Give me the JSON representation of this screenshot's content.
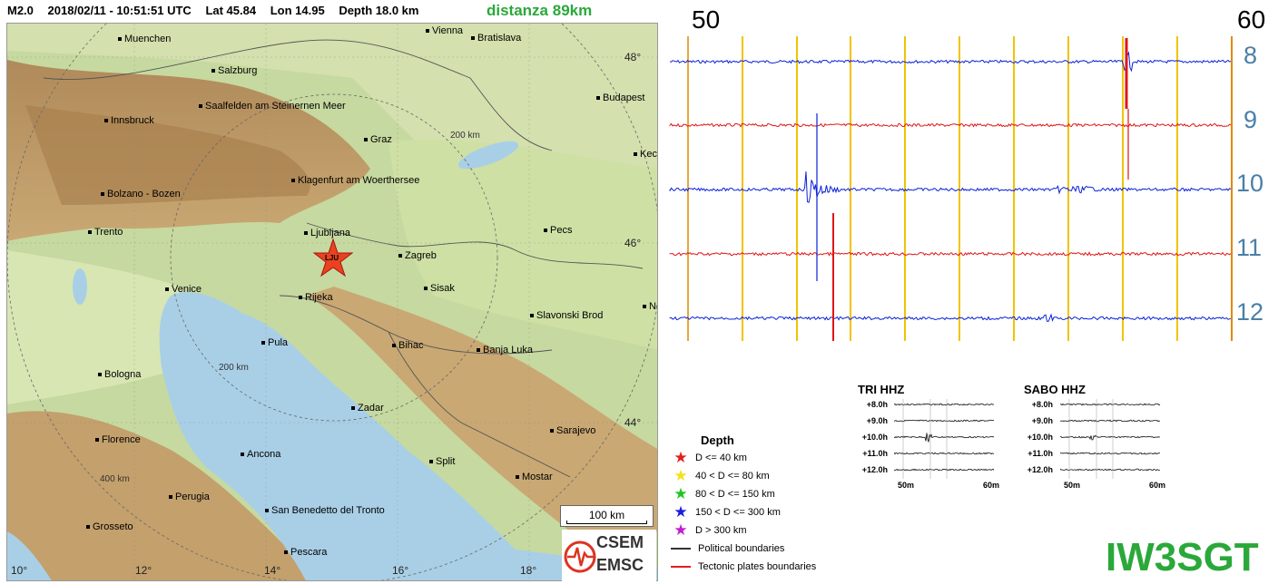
{
  "header": {
    "magnitude": "M2.0",
    "datetime": "2018/02/11 - 10:51:51 UTC",
    "lat": "Lat 45.84",
    "lon": "Lon 14.95",
    "depth": "Depth  18.0 km",
    "distance": "distanza 89km"
  },
  "map": {
    "epicenter_label": "LJU",
    "cities": [
      "Muenchen",
      "Vienna",
      "Bratislava",
      "Salzburg",
      "Budapest",
      "Saalfelden am Steinernen Meer",
      "Innsbruck",
      "Graz",
      "Kec",
      "Klagenfurt am Woerthersee",
      "Bolzano - Bozen",
      "Trento",
      "Ljubljana",
      "Pecs",
      "Zagreb",
      "Venice",
      "Sisak",
      "Rijeka",
      "Slavonski Brod",
      "Pula",
      "Bihac",
      "Banja Luka",
      "Bologna",
      "Zadar",
      "Sarajevo",
      "Florence",
      "Ancona",
      "Split",
      "Mostar",
      "Perugia",
      "San Benedetto del Tronto",
      "Grosseto",
      "Pescara",
      "Ne"
    ],
    "lat_labels": [
      "48°",
      "46°",
      "44°"
    ],
    "lon_labels": [
      "10°",
      "12°",
      "14°",
      "16°",
      "18°"
    ],
    "radius_labels": [
      "200 km",
      "200 km",
      "400 km"
    ],
    "scale_label": "100 km",
    "logo_top": "CSEM",
    "logo_bottom": "EMSC"
  },
  "helicorder": {
    "minute_start": "50",
    "minute_end": "60",
    "hours": [
      "8",
      "9",
      "10",
      "11",
      "12"
    ],
    "colors": {
      "blue": "#0a22d8",
      "red": "#e01515",
      "grid": "#f0c400",
      "edge": "#e08a00"
    }
  },
  "mini_seismograms": [
    {
      "title": "TRI HHZ",
      "rows": [
        "+8.0h",
        "+9.0h",
        "+10.0h",
        "+11.0h",
        "+12.0h"
      ],
      "axis_start": "50m",
      "axis_end": "60m"
    },
    {
      "title": "SABO HHZ",
      "rows": [
        "+8.0h",
        "+9.0h",
        "+10.0h",
        "+11.0h",
        "+12.0h"
      ],
      "axis_start": "50m",
      "axis_end": "60m"
    }
  ],
  "legend": {
    "title": "Depth",
    "items": [
      {
        "label": "D <= 40 km",
        "color": "#e51d1d"
      },
      {
        "label": "40 < D <= 80 km",
        "color": "#f2e21b"
      },
      {
        "label": "80 < D <= 150 km",
        "color": "#22c322"
      },
      {
        "label": "150 < D <= 300 km",
        "color": "#1c1ce0"
      },
      {
        "label": "D > 300 km",
        "color": "#c21ccf"
      }
    ],
    "lines": [
      {
        "label": "Political boundaries",
        "color": "#333333"
      },
      {
        "label": "Tectonic plates boundaries",
        "color": "#e51d1d"
      }
    ]
  },
  "callsign": "IW3SGT"
}
